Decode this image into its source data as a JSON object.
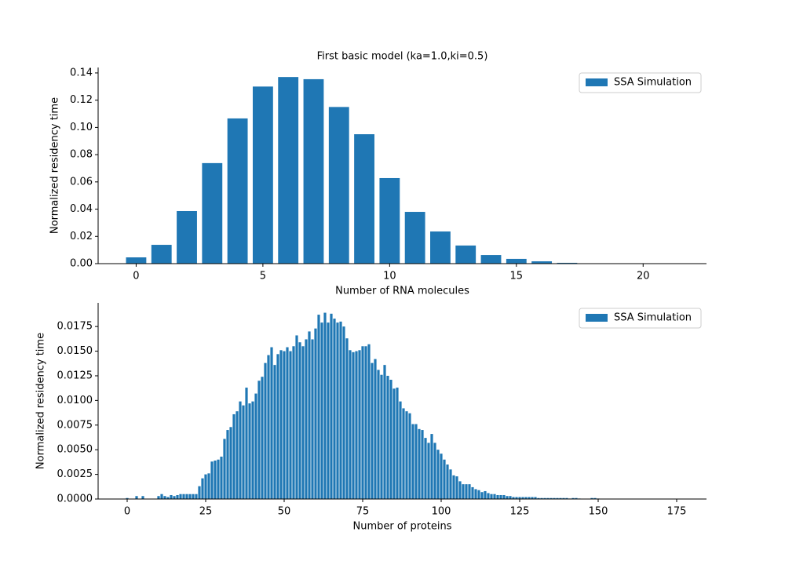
{
  "chart_data": [
    {
      "type": "bar",
      "title": "First basic model (ka=1.0,ki=0.5)",
      "xlabel": "Number of RNA molecules",
      "ylabel": "Normalized residency time",
      "legend": "upper right",
      "grid": false,
      "series": [
        {
          "name": "SSA Simulation",
          "color": "#1f77b4",
          "x": [
            0,
            1,
            2,
            3,
            4,
            5,
            6,
            7,
            8,
            9,
            10,
            11,
            12,
            13,
            14,
            15,
            16,
            17,
            18,
            19,
            20,
            21
          ],
          "values": [
            0.0046,
            0.0138,
            0.0386,
            0.0738,
            0.1066,
            0.13,
            0.137,
            0.1354,
            0.115,
            0.095,
            0.0628,
            0.038,
            0.0236,
            0.0133,
            0.0063,
            0.0035,
            0.0017,
            0.0006,
            0.0002,
            0.0001,
            5e-05,
            2e-05
          ]
        }
      ],
      "xlim": [
        -1.5,
        22.5
      ],
      "xticks": [
        0,
        5,
        10,
        15,
        20
      ],
      "ylim": [
        0,
        0.144
      ],
      "yticks": [
        {
          "value": 0,
          "label": "0.00"
        },
        {
          "value": 0.02,
          "label": "0.02"
        },
        {
          "value": 0.04,
          "label": "0.04"
        },
        {
          "value": 0.06,
          "label": "0.06"
        },
        {
          "value": 0.08,
          "label": "0.08"
        },
        {
          "value": 0.1,
          "label": "0.10"
        },
        {
          "value": 0.12,
          "label": "0.12"
        },
        {
          "value": 0.14,
          "label": "0.14"
        }
      ]
    },
    {
      "type": "bar",
      "xlabel": "Number of proteins",
      "ylabel": "Normalized residency time",
      "legend": "upper right",
      "grid": false,
      "series": [
        {
          "name": "SSA Simulation",
          "color": "#1f77b4",
          "x": [
            0,
            1,
            2,
            3,
            4,
            5,
            6,
            7,
            8,
            9,
            10,
            11,
            12,
            13,
            14,
            15,
            16,
            17,
            18,
            19,
            20,
            21,
            22,
            23,
            24,
            25,
            26,
            27,
            28,
            29,
            30,
            31,
            32,
            33,
            34,
            35,
            36,
            37,
            38,
            39,
            40,
            41,
            42,
            43,
            44,
            45,
            46,
            47,
            48,
            49,
            50,
            51,
            52,
            53,
            54,
            55,
            56,
            57,
            58,
            59,
            60,
            61,
            62,
            63,
            64,
            65,
            66,
            67,
            68,
            69,
            70,
            71,
            72,
            73,
            74,
            75,
            76,
            77,
            78,
            79,
            80,
            81,
            82,
            83,
            84,
            85,
            86,
            87,
            88,
            89,
            90,
            91,
            92,
            93,
            94,
            95,
            96,
            97,
            98,
            99,
            100,
            101,
            102,
            103,
            104,
            105,
            106,
            107,
            108,
            109,
            110,
            111,
            112,
            113,
            114,
            115,
            116,
            117,
            118,
            119,
            120,
            121,
            122,
            123,
            124,
            125,
            126,
            127,
            128,
            129,
            130,
            131,
            132,
            133,
            134,
            135,
            136,
            137,
            138,
            139,
            140,
            141,
            142,
            143,
            144,
            145,
            146,
            147,
            148,
            149,
            150
          ],
          "values": [
            0.0001,
            0,
            0,
            0.0003,
            0,
            0.0003,
            0,
            0,
            0,
            0,
            0.0003,
            0.0005,
            0.0003,
            0.0002,
            0.0004,
            0.0003,
            0.0004,
            0.0005,
            0.0005,
            0.0005,
            0.0005,
            0.0005,
            0.0005,
            0.0013,
            0.0021,
            0.0025,
            0.0026,
            0.0038,
            0.0039,
            0.004,
            0.0043,
            0.0061,
            0.007,
            0.0073,
            0.0086,
            0.0089,
            0.0099,
            0.0095,
            0.0113,
            0.0097,
            0.0099,
            0.0107,
            0.012,
            0.0124,
            0.0138,
            0.0146,
            0.0154,
            0.0136,
            0.0147,
            0.0151,
            0.015,
            0.0154,
            0.015,
            0.0155,
            0.0166,
            0.0159,
            0.0155,
            0.0162,
            0.017,
            0.0162,
            0.0173,
            0.0187,
            0.0179,
            0.0189,
            0.0179,
            0.0188,
            0.0183,
            0.0179,
            0.018,
            0.0175,
            0.0163,
            0.0151,
            0.0149,
            0.015,
            0.0151,
            0.0155,
            0.0155,
            0.0157,
            0.0138,
            0.0142,
            0.0131,
            0.0126,
            0.0136,
            0.0125,
            0.0121,
            0.0112,
            0.0113,
            0.0099,
            0.0092,
            0.0089,
            0.0087,
            0.0076,
            0.0076,
            0.0071,
            0.007,
            0.0062,
            0.0057,
            0.0066,
            0.0057,
            0.005,
            0.0046,
            0.004,
            0.0035,
            0.003,
            0.0024,
            0.0023,
            0.0018,
            0.0015,
            0.0015,
            0.0015,
            0.0012,
            0.001,
            0.0009,
            0.0007,
            0.0008,
            0.0006,
            0.0005,
            0.0005,
            0.0004,
            0.0004,
            0.0004,
            0.0003,
            0.0003,
            0.0002,
            0.0002,
            0.0002,
            0.0002,
            0.0002,
            0.0002,
            0.0002,
            0.0002,
            0.0001,
            0.0001,
            0.0001,
            0.0001,
            0.0001,
            0.0001,
            0.0001,
            0.0001,
            0.0001,
            0.0001,
            5e-05,
            0.0001,
            0.0001,
            5e-05,
            0,
            0,
            0,
            0.0001,
            0.0001,
            5e-05
          ]
        }
      ],
      "xlim": [
        -9.25,
        184.5
      ],
      "xticks": [
        0,
        25,
        50,
        75,
        100,
        125,
        150,
        175
      ],
      "ylim": [
        0,
        0.0199
      ],
      "yticks": [
        {
          "value": 0,
          "label": "0.0000"
        },
        {
          "value": 0.0025,
          "label": "0.0025"
        },
        {
          "value": 0.005,
          "label": "0.0050"
        },
        {
          "value": 0.0075,
          "label": "0.0075"
        },
        {
          "value": 0.01,
          "label": "0.0100"
        },
        {
          "value": 0.0125,
          "label": "0.0125"
        },
        {
          "value": 0.015,
          "label": "0.0150"
        },
        {
          "value": 0.0175,
          "label": "0.0175"
        }
      ]
    }
  ]
}
